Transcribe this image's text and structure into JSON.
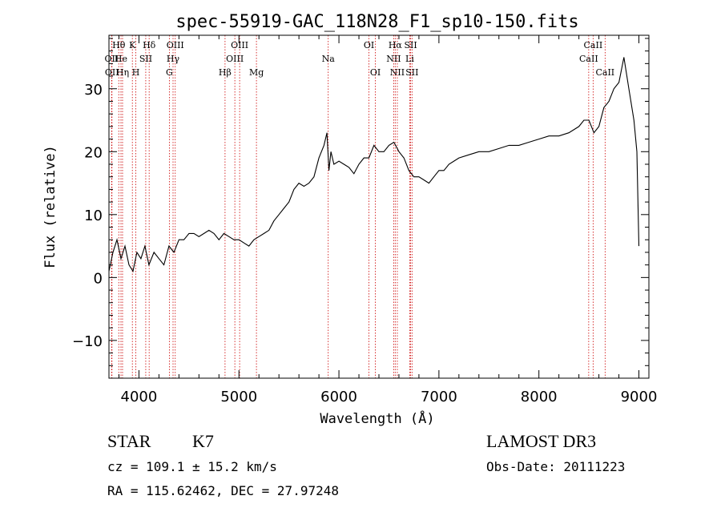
{
  "chart_data": {
    "type": "line",
    "title": "spec-55919-GAC_118N28_F1_sp10-150.fits",
    "xlabel": "Wavelength (Å)",
    "ylabel": "Flux (relative)",
    "xlim": [
      3700,
      9100
    ],
    "ylim": [
      -16,
      38.5
    ],
    "xticks": [
      4000,
      5000,
      6000,
      7000,
      8000,
      9000
    ],
    "yticks": [
      -10,
      0,
      10,
      20,
      30
    ],
    "xtick_labels": [
      "4000",
      "5000",
      "6000",
      "7000",
      "8000",
      "9000"
    ],
    "ytick_labels": [
      "−10",
      "0",
      "10",
      "20",
      "30"
    ],
    "grid": false,
    "series": [
      {
        "name": "flux",
        "x": [
          3700,
          3740,
          3780,
          3820,
          3860,
          3900,
          3940,
          3980,
          4020,
          4060,
          4100,
          4150,
          4200,
          4250,
          4300,
          4350,
          4400,
          4450,
          4500,
          4550,
          4600,
          4650,
          4700,
          4750,
          4800,
          4850,
          4900,
          4950,
          5000,
          5050,
          5100,
          5150,
          5200,
          5250,
          5300,
          5350,
          5400,
          5450,
          5500,
          5550,
          5600,
          5650,
          5700,
          5750,
          5800,
          5850,
          5880,
          5900,
          5920,
          5950,
          6000,
          6050,
          6100,
          6150,
          6200,
          6250,
          6300,
          6350,
          6400,
          6450,
          6500,
          6550,
          6600,
          6650,
          6700,
          6750,
          6800,
          6850,
          6900,
          6950,
          7000,
          7050,
          7100,
          7150,
          7200,
          7300,
          7400,
          7500,
          7600,
          7700,
          7800,
          7900,
          8000,
          8100,
          8200,
          8300,
          8400,
          8450,
          8500,
          8550,
          8600,
          8650,
          8700,
          8750,
          8800,
          8850,
          8900,
          8950,
          8980,
          9000
        ],
        "values": [
          1,
          4,
          6,
          3,
          5,
          2,
          1,
          4,
          3,
          5,
          2,
          4,
          3,
          2,
          5,
          4,
          6,
          6,
          7,
          7,
          6.5,
          7,
          7.5,
          7,
          6,
          7,
          6.5,
          6,
          6,
          5.5,
          5,
          6,
          6.5,
          7,
          7.5,
          9,
          10,
          11,
          12,
          14,
          15,
          14.5,
          15,
          16,
          19,
          21,
          23,
          17,
          20,
          18,
          18.5,
          18,
          17.5,
          16.5,
          18,
          19,
          19,
          21,
          20,
          20,
          21,
          21.5,
          20,
          19,
          17,
          16,
          16,
          15.5,
          15,
          16,
          17,
          17,
          18,
          18.5,
          19,
          19.5,
          20,
          20,
          20.5,
          21,
          21,
          21.5,
          22,
          22.5,
          22.5,
          23,
          24,
          25,
          25,
          23,
          24,
          27,
          28,
          30,
          31,
          35,
          30,
          25,
          20,
          5
        ]
      }
    ],
    "spectral_lines": [
      {
        "label": "Hθ",
        "x": 3798,
        "row": 1
      },
      {
        "label": "OII",
        "x": 3727,
        "row": 2
      },
      {
        "label": "He",
        "x": 3820,
        "row": 2
      },
      {
        "label": "OII",
        "x": 3730,
        "row": 3
      },
      {
        "label": "Hη",
        "x": 3836,
        "row": 3
      },
      {
        "label": "K",
        "x": 3934,
        "row": 1
      },
      {
        "label": "Hδ",
        "x": 4102,
        "row": 1
      },
      {
        "label": "SII",
        "x": 4068,
        "row": 2
      },
      {
        "label": "H",
        "x": 3969,
        "row": 3
      },
      {
        "label": "OIII",
        "x": 4363,
        "row": 1
      },
      {
        "label": "Hγ",
        "x": 4341,
        "row": 2
      },
      {
        "label": "G",
        "x": 4304,
        "row": 3
      },
      {
        "label": "OIII",
        "x": 5007,
        "row": 1
      },
      {
        "label": "OIII",
        "x": 4959,
        "row": 2
      },
      {
        "label": "Hβ",
        "x": 4861,
        "row": 3
      },
      {
        "label": "Mg",
        "x": 5175,
        "row": 3
      },
      {
        "label": "Na",
        "x": 5893,
        "row": 2
      },
      {
        "label": "OI",
        "x": 6300,
        "row": 1
      },
      {
        "label": "OI",
        "x": 6364,
        "row": 3
      },
      {
        "label": "Hα",
        "x": 6563,
        "row": 1
      },
      {
        "label": "NII",
        "x": 6548,
        "row": 2
      },
      {
        "label": "NII",
        "x": 6584,
        "row": 3
      },
      {
        "label": "SII",
        "x": 6717,
        "row": 1
      },
      {
        "label": "Li",
        "x": 6708,
        "row": 2
      },
      {
        "label": "SII",
        "x": 6731,
        "row": 3
      },
      {
        "label": "CaII",
        "x": 8542,
        "row": 1
      },
      {
        "label": "CaII",
        "x": 8498,
        "row": 2
      },
      {
        "label": "CaII",
        "x": 8662,
        "row": 3
      }
    ]
  },
  "info": {
    "object_class": "STAR",
    "subclass": "K7",
    "redshift": "cz = 109.1 ± 15.2 km/s",
    "coords": "RA = 115.62462, DEC =  27.97248",
    "survey": "LAMOST DR3",
    "obs_date": "Obs-Date: 20111223"
  }
}
